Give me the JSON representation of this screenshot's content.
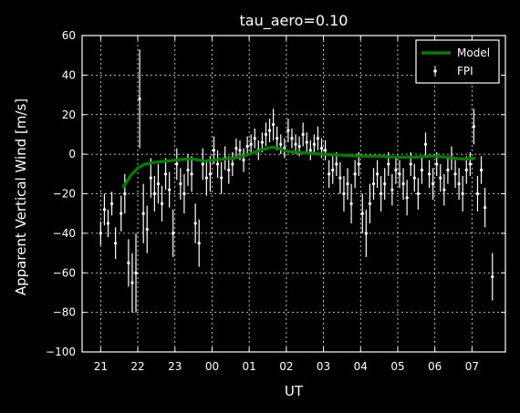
{
  "chart_data": {
    "type": "scatter",
    "title": "tau_aero=0.10",
    "xlabel": "UT",
    "ylabel": "Apparent Vertical Wind [m/s]",
    "xlim": [
      20.5,
      31.9
    ],
    "ylim": [
      -100,
      60
    ],
    "x_tick_values": [
      21,
      22,
      23,
      24,
      25,
      26,
      27,
      28,
      29,
      30,
      31
    ],
    "x_tick_labels": [
      "21",
      "22",
      "23",
      "00",
      "01",
      "02",
      "03",
      "04",
      "05",
      "06",
      "07"
    ],
    "y_tick_values": [
      -100,
      -80,
      -60,
      -40,
      -20,
      0,
      20,
      40,
      60
    ],
    "y_tick_labels": [
      "−100",
      "−80",
      "−60",
      "−40",
      "−20",
      "0",
      "20",
      "40",
      "60"
    ],
    "grid": true,
    "legend": {
      "placement": "top-right",
      "entries": [
        "Model",
        "FPI"
      ]
    },
    "colors": {
      "model": "#008000",
      "fpi": "#ffffff",
      "background": "#000000"
    },
    "series": [
      {
        "name": "Model",
        "style": "line",
        "x": [
          21.6,
          21.8,
          22.0,
          22.2,
          22.5,
          22.8,
          23.0,
          23.3,
          23.5,
          23.8,
          24.0,
          24.3,
          24.6,
          25.0,
          25.3,
          25.6,
          25.8,
          26.0,
          26.3,
          26.6,
          27.0,
          27.5,
          28.0,
          28.5,
          29.0,
          29.5,
          29.8,
          30.0,
          30.3,
          30.5,
          30.8,
          31.1
        ],
        "y": [
          -17,
          -11,
          -7,
          -5,
          -4,
          -3.5,
          -3,
          -2.5,
          -2.5,
          -3.5,
          -3,
          -2.5,
          -2,
          0,
          2,
          3.5,
          3,
          1.5,
          1,
          0.5,
          0,
          -0.5,
          -1,
          -1,
          -1.5,
          -1.5,
          -1,
          -1,
          -1.5,
          -2,
          -2.5,
          -2
        ]
      },
      {
        "name": "FPI",
        "style": "errorbar",
        "x": [
          21.0,
          21.1,
          21.2,
          21.3,
          21.4,
          21.55,
          21.65,
          21.75,
          21.85,
          21.95,
          22.05,
          22.15,
          22.25,
          22.35,
          22.45,
          22.55,
          22.65,
          22.75,
          22.85,
          22.95,
          23.05,
          23.15,
          23.25,
          23.35,
          23.45,
          23.55,
          23.65,
          23.75,
          23.85,
          23.95,
          24.05,
          24.15,
          24.25,
          24.35,
          24.45,
          24.55,
          24.65,
          24.75,
          24.85,
          24.95,
          25.05,
          25.15,
          25.25,
          25.35,
          25.45,
          25.55,
          25.65,
          25.75,
          25.85,
          25.95,
          26.05,
          26.15,
          26.25,
          26.35,
          26.45,
          26.55,
          26.65,
          26.75,
          26.85,
          26.95,
          27.05,
          27.15,
          27.25,
          27.35,
          27.45,
          27.55,
          27.65,
          27.75,
          27.85,
          27.95,
          28.05,
          28.15,
          28.25,
          28.35,
          28.45,
          28.55,
          28.65,
          28.75,
          28.85,
          28.95,
          29.05,
          29.15,
          29.25,
          29.35,
          29.45,
          29.55,
          29.65,
          29.75,
          29.85,
          29.95,
          30.05,
          30.15,
          30.25,
          30.35,
          30.45,
          30.55,
          30.65,
          30.75,
          30.85,
          30.95,
          31.05,
          31.15,
          31.25,
          31.35,
          31.55
        ],
        "y": [
          -40,
          -28,
          -35,
          -25,
          -45,
          -30,
          -20,
          -55,
          -65,
          -60,
          28,
          -30,
          -38,
          -12,
          -20,
          -15,
          -25,
          -10,
          -18,
          -40,
          -5,
          -15,
          -20,
          -8,
          -10,
          -35,
          -45,
          -5,
          -12,
          -10,
          2,
          -5,
          -12,
          -2,
          -8,
          -5,
          3,
          2,
          -3,
          4,
          5,
          8,
          2,
          6,
          10,
          12,
          15,
          8,
          5,
          3,
          12,
          8,
          5,
          4,
          10,
          6,
          2,
          5,
          8,
          3,
          2,
          -10,
          -8,
          -5,
          -12,
          -20,
          -15,
          -25,
          -10,
          -5,
          -30,
          -40,
          -25,
          -15,
          -10,
          -20,
          -15,
          -5,
          -18,
          -8,
          -10,
          -15,
          -22,
          -5,
          -12,
          -20,
          -8,
          5,
          -10,
          -15,
          -5,
          -12,
          -18,
          -8,
          -2,
          -10,
          -15,
          -20,
          -8,
          -5,
          14,
          -20,
          -8,
          -27,
          -62
        ],
        "err": [
          6,
          8,
          7,
          6,
          8,
          9,
          10,
          12,
          15,
          20,
          25,
          15,
          12,
          10,
          9,
          10,
          9,
          8,
          9,
          12,
          8,
          8,
          10,
          8,
          9,
          10,
          12,
          8,
          9,
          9,
          7,
          7,
          8,
          6,
          7,
          6,
          5,
          5,
          6,
          5,
          5,
          5,
          5,
          5,
          6,
          6,
          8,
          6,
          5,
          5,
          6,
          5,
          5,
          5,
          6,
          5,
          5,
          5,
          6,
          5,
          5,
          7,
          7,
          6,
          8,
          9,
          8,
          10,
          7,
          6,
          10,
          12,
          10,
          8,
          7,
          9,
          8,
          6,
          8,
          7,
          7,
          8,
          9,
          6,
          7,
          8,
          7,
          6,
          7,
          8,
          6,
          7,
          8,
          7,
          6,
          7,
          8,
          9,
          7,
          6,
          9,
          9,
          7,
          10,
          12
        ]
      }
    ]
  }
}
